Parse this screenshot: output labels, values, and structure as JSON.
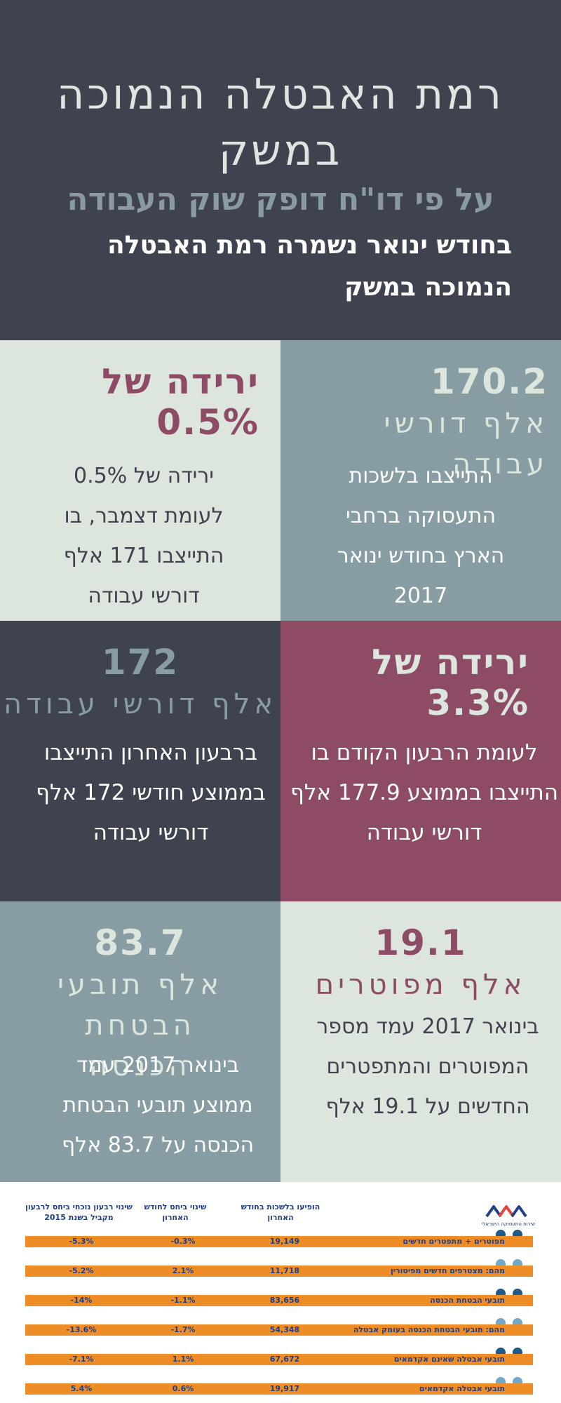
{
  "header": {
    "title": "רמת האבטלה הנמוכה במשק",
    "subtitle": "על פי דו\"ח דופק שוק העבודה",
    "statement": "בחודש ינואר נשמרה רמת האבטלה הנמוכה במשק"
  },
  "tiles": [
    {
      "big": "170.2",
      "label": "אלף דורשי עבודה",
      "text": "התייצבו בלשכות התעסוקה ברחבי הארץ בחודש ינואר 2017"
    },
    {
      "big": "ירידה של 0.5%",
      "label": "",
      "text": "ירידה של 0.5% לעומת דצמבר, בו התייצבו 171 אלף דורשי עבודה"
    },
    {
      "big": "ירידה של 3.3%",
      "label": "",
      "text": "לעומת הרבעון הקודם בו התייצבו בממוצע 177.9 אלף דורשי עבודה"
    },
    {
      "big": "172",
      "label": "אלף דורשי עבודה",
      "text": "ברבעון האחרון התייצבו בממוצע חודשי 172 אלף דורשי עבודה"
    },
    {
      "big": "19.1",
      "label": "אלף מפוטרים",
      "text": "בינואר 2017 עמד מספר המפוטרים והמתפטרים החדשים על 19.1 אלף"
    },
    {
      "big": "83.7",
      "label": "אלף תובעי הבטחת הכנסה",
      "text": "בינואר 2017 עמד ממוצע תובעי הבטחת הכנסה על 83.7 אלף"
    }
  ],
  "table": {
    "logo_name": "שירות התעסוקה הישראלי",
    "headers": [
      "הופיעו בלשכות בחודש האחרון",
      "שינוי ביחס לחודש האחרון",
      "שינוי רבעון נוכחי ביחס לרבעון מקביל בשנת 2015"
    ],
    "rows": [
      {
        "label": "מפוטרים + מתפטרים חדשים",
        "count": "19,149",
        "monthly": "-0.3%",
        "quarterly": "-5.3%"
      },
      {
        "label": "מהם: מצטרפים חדשים מפיטורין",
        "count": "11,718",
        "monthly": "2.1%",
        "quarterly": "-5.2%"
      },
      {
        "label": "תובעי הבטחת הכנסה",
        "count": "83,656",
        "monthly": "-1.1%",
        "quarterly": "-14%"
      },
      {
        "label": "מהם: תובעי הבטחת הכנסה בעומק אבטלה",
        "count": "54,348",
        "monthly": "-1.7%",
        "quarterly": "-13.6%"
      },
      {
        "label": "תובעי אבטלה שאינם אקדמאים",
        "count": "67,672",
        "monthly": "1.1%",
        "quarterly": "-7.1%"
      },
      {
        "label": "תובעי אבטלה אקדמאים",
        "count": "19,917",
        "monthly": "0.6%",
        "quarterly": "5.4%"
      }
    ]
  },
  "colors": {
    "dark": "#3f424f",
    "light": "#dde6dd",
    "slate": "#879da3",
    "plum": "#8e4b66",
    "orange": "#ee8d25",
    "navy": "#1e3f8a"
  }
}
